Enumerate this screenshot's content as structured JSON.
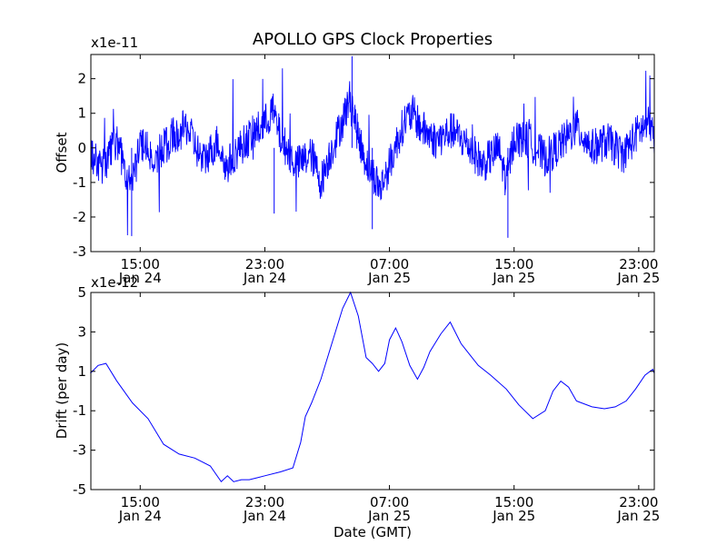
{
  "chart_data": [
    {
      "type": "line",
      "title": "APOLLO GPS Clock Properties",
      "xlabel": "",
      "ylabel": "Offset",
      "y_exponent_label": "x1e-11",
      "y_scale_factor": 1e-11,
      "ylim": [
        -3,
        2.7
      ],
      "yticks": [
        "2",
        "1",
        "0",
        "-1",
        "-2",
        "-3"
      ],
      "xlim": [
        "2013-01-24 11:50",
        "2013-01-26 00:00"
      ],
      "xticks": [
        {
          "time": "15:00",
          "date": "Jan 24"
        },
        {
          "time": "23:00",
          "date": "Jan 24"
        },
        {
          "time": "07:00",
          "date": "Jan 25"
        },
        {
          "time": "15:00",
          "date": "Jan 25"
        },
        {
          "time": "23:00",
          "date": "Jan 25"
        }
      ],
      "grid": false,
      "series": [
        {
          "color": "#0000ff",
          "x_hours": [
            11.8,
            12.5,
            13.5,
            14.2,
            14.5,
            15.0,
            16.0,
            17.0,
            18.0,
            19.0,
            20.0,
            20.5,
            21.0,
            22.0,
            23.0,
            23.5,
            24.0,
            25.0,
            26.0,
            26.6,
            27.0,
            28.0,
            28.5,
            29.0,
            29.5,
            30.0,
            30.4,
            31.0,
            31.5,
            32.0,
            32.5,
            33.0,
            34.0,
            35.0,
            36.0,
            37.0,
            38.0,
            38.5,
            39.0,
            40.0,
            41.0,
            42.0,
            43.0,
            44.0,
            45.0,
            46.0,
            47.0,
            47.8,
            48.0
          ],
          "offset": [
            -0.2,
            -0.6,
            0.2,
            -0.9,
            -1.1,
            0.1,
            -0.3,
            0.3,
            0.6,
            -0.4,
            0.2,
            -0.6,
            -0.2,
            0.3,
            0.7,
            1.1,
            0.3,
            -0.5,
            -0.2,
            -1.0,
            -0.4,
            0.8,
            1.5,
            0.3,
            -0.4,
            -0.8,
            -1.2,
            -0.5,
            0.2,
            0.8,
            1.0,
            0.6,
            0.2,
            0.5,
            0.1,
            -0.5,
            0.0,
            -1.0,
            0.3,
            0.2,
            -0.3,
            0.1,
            0.6,
            0.0,
            0.2,
            -0.2,
            0.5,
            0.7,
            0.0
          ]
        }
      ]
    },
    {
      "type": "line",
      "title": "",
      "xlabel": "Date (GMT)",
      "ylabel": "Drift (per day)",
      "y_exponent_label": "x1e-12",
      "y_scale_factor": 1e-12,
      "ylim": [
        -5,
        5
      ],
      "yticks": [
        "5",
        "3",
        "1",
        "-1",
        "-3",
        "-5"
      ],
      "xlim": [
        "2013-01-24 11:50",
        "2013-01-26 00:00"
      ],
      "xticks": [
        {
          "time": "15:00",
          "date": "Jan 24"
        },
        {
          "time": "23:00",
          "date": "Jan 24"
        },
        {
          "time": "07:00",
          "date": "Jan 25"
        },
        {
          "time": "15:00",
          "date": "Jan 25"
        },
        {
          "time": "23:00",
          "date": "Jan 25"
        }
      ],
      "grid": false,
      "series": [
        {
          "color": "#0000ff",
          "x_hours": [
            11.8,
            12.3,
            12.8,
            13.5,
            14.5,
            15.5,
            16.5,
            17.5,
            18.5,
            19.5,
            20.2,
            20.6,
            21.0,
            21.5,
            22.0,
            22.5,
            23.0,
            24.0,
            24.8,
            25.3,
            25.6,
            26.0,
            26.6,
            27.3,
            28.0,
            28.5,
            29.0,
            29.5,
            29.9,
            30.3,
            30.7,
            31.0,
            31.4,
            31.8,
            32.3,
            32.8,
            33.2,
            33.6,
            34.3,
            34.9,
            35.6,
            36.2,
            36.7,
            37.5,
            38.5,
            39.3,
            40.2,
            41.0,
            41.5,
            42.0,
            42.5,
            43.0,
            44.0,
            44.8,
            45.5,
            46.2,
            46.8,
            47.4,
            47.9,
            48.0
          ],
          "drift": [
            0.9,
            1.3,
            1.4,
            0.5,
            -0.6,
            -1.4,
            -2.7,
            -3.2,
            -3.4,
            -3.8,
            -4.6,
            -4.3,
            -4.6,
            -4.5,
            -4.5,
            -4.4,
            -4.3,
            -4.1,
            -3.9,
            -2.6,
            -1.3,
            -0.6,
            0.6,
            2.4,
            4.2,
            5.0,
            3.8,
            1.7,
            1.4,
            1.0,
            1.4,
            2.6,
            3.2,
            2.5,
            1.3,
            0.6,
            1.2,
            2.0,
            2.9,
            3.5,
            2.4,
            1.8,
            1.3,
            0.8,
            0.1,
            -0.7,
            -1.4,
            -1.0,
            0.0,
            0.5,
            0.2,
            -0.5,
            -0.8,
            -0.9,
            -0.8,
            -0.5,
            0.1,
            0.8,
            1.1,
            0.9
          ]
        }
      ]
    }
  ]
}
